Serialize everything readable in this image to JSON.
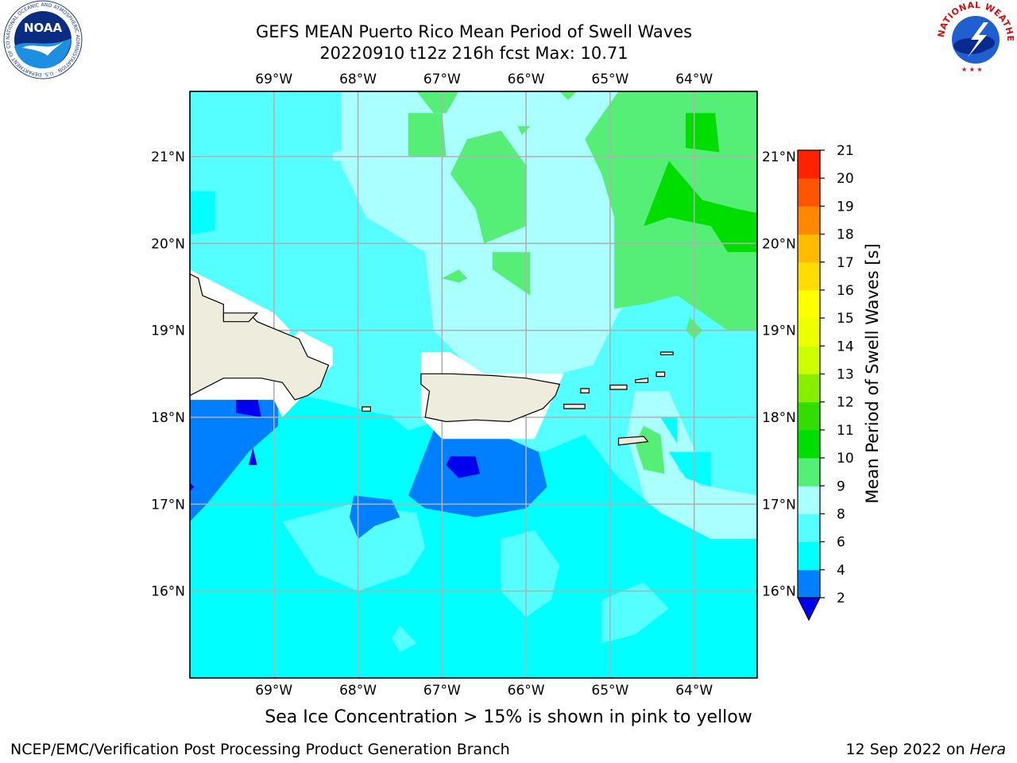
{
  "title": {
    "line1": "GEFS MEAN Puerto Rico Mean Period of Swell Waves",
    "line2": "20220910 t12z 216h fcst   Max: 10.71"
  },
  "map": {
    "lon_range": [
      -70.0,
      -63.25
    ],
    "lat_range": [
      15.0,
      21.75
    ],
    "lon_ticks": [
      -69,
      -68,
      -67,
      -66,
      -65,
      -64
    ],
    "lon_tick_labels": [
      "69°W",
      "68°W",
      "67°W",
      "66°W",
      "65°W",
      "64°W"
    ],
    "lat_ticks": [
      16,
      17,
      18,
      19,
      20,
      21
    ],
    "lat_tick_labels": [
      "16°N",
      "17°N",
      "18°N",
      "19°N",
      "20°N",
      "21°N"
    ],
    "grid": true,
    "land_color": "#eeecdc",
    "no_data_color": "#ffffff"
  },
  "colorbar": {
    "label": "Mean Period of Swell Waves [s]",
    "levels": [
      2,
      4,
      6,
      8,
      9,
      10,
      11,
      12,
      13,
      14,
      15,
      16,
      17,
      18,
      19,
      20,
      21
    ],
    "tick_labels": [
      "2",
      "4",
      "6",
      "8",
      "9",
      "10",
      "11",
      "12",
      "13",
      "14",
      "15",
      "16",
      "17",
      "18",
      "19",
      "20",
      "21"
    ],
    "colors": [
      "#0080ff",
      "#00ffff",
      "#55ffff",
      "#aaffff",
      "#55ee77",
      "#00dd00",
      "#33dd00",
      "#88ee00",
      "#ccff00",
      "#eeff00",
      "#ffff00",
      "#ffdd00",
      "#ffbb00",
      "#ff8800",
      "#ff5500",
      "#ff2200"
    ],
    "under_color": "#0000ee",
    "extend": "min"
  },
  "caption": "Sea Ice Concentration > 15% is shown in pink to yellow",
  "footer": {
    "left": "NCEP/EMC/Verification Post Processing Product Generation Branch",
    "right_date": "12 Sep 2022 on ",
    "right_machine": "Hera"
  },
  "logos": {
    "noaa_text": "NOAA",
    "noaa_ring": "NATIONAL OCEANIC AND ATMOSPHERIC ADMINISTRATION · U.S. DEPARTMENT OF COMMERCE ·",
    "nws_ring": "NATIONAL WEATHER SERVICE"
  }
}
